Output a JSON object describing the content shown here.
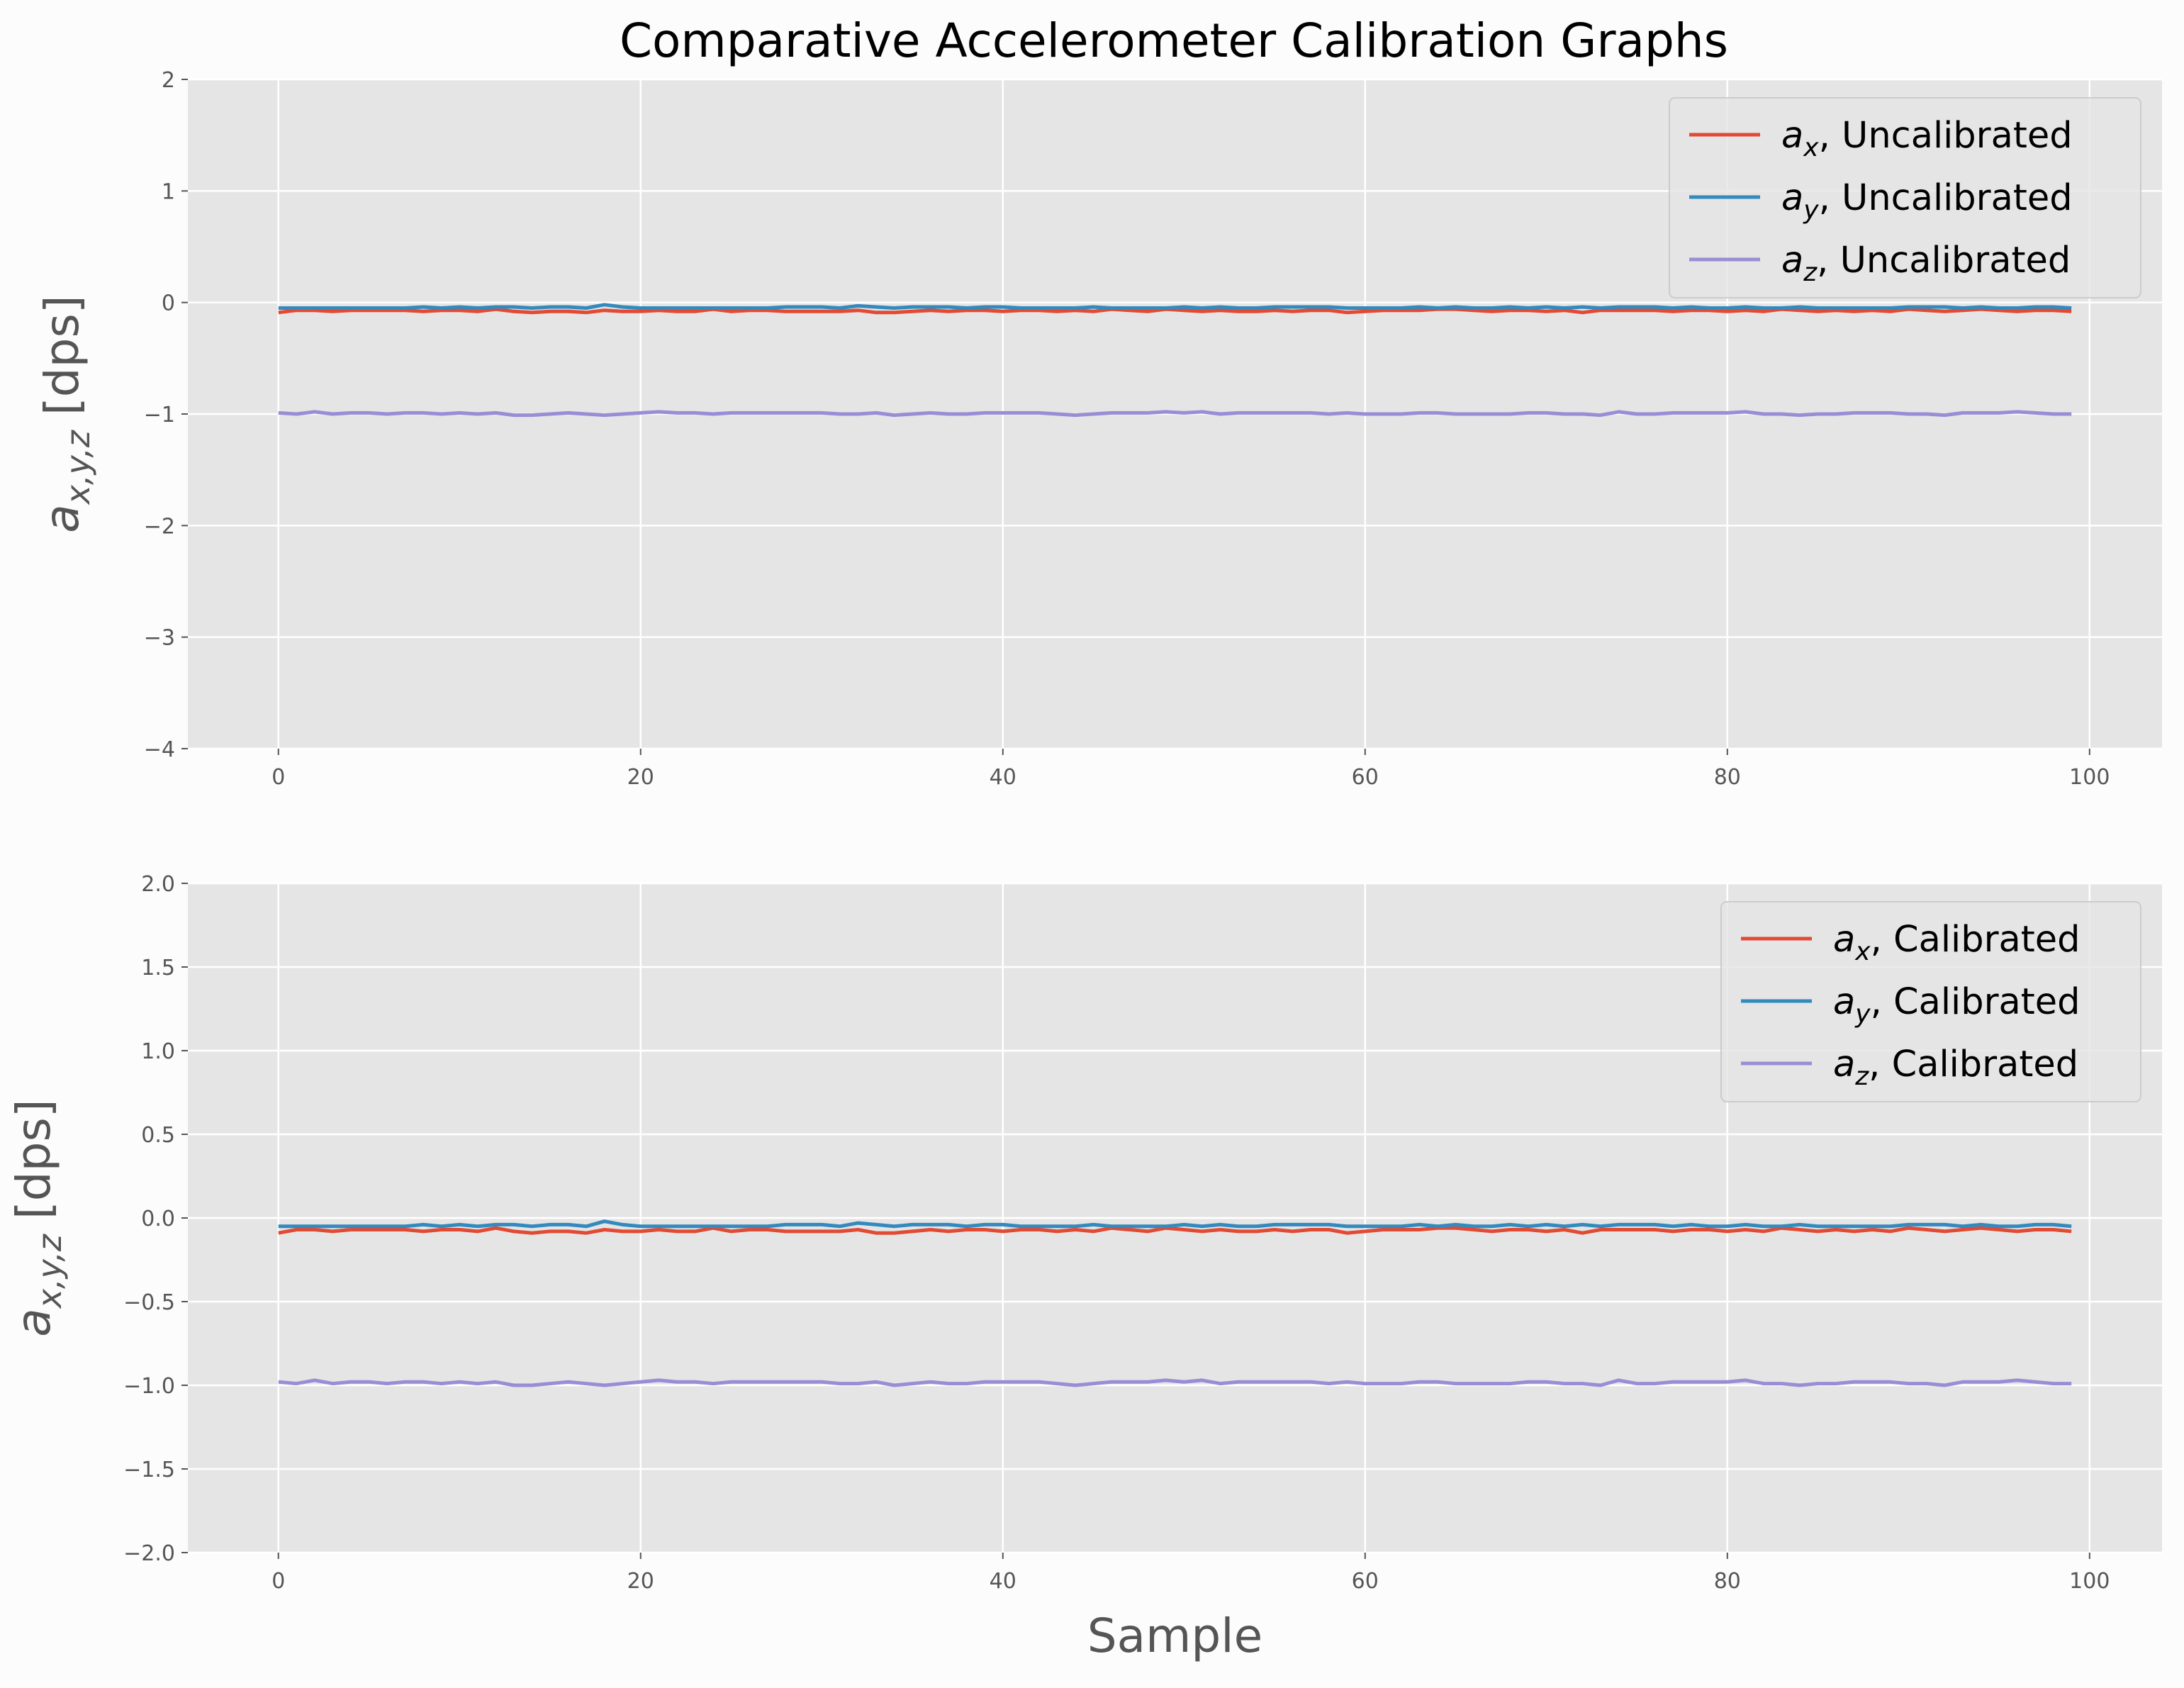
{
  "title": "Comparative Accelerometer Calibration Graphs",
  "colors": {
    "figure_bg": "#fcfcfc",
    "axes_bg": "#e5e5e5",
    "grid": "#ffffff",
    "tick_text": "#555555",
    "ax": "#E24A33",
    "ay": "#348ABD",
    "az": "#988ED5"
  },
  "chart_data": [
    {
      "type": "line",
      "ylabel": "a_{x,y,z} [dps]",
      "xlabel": "",
      "xlim": [
        -5,
        104
      ],
      "ylim": [
        -4,
        2
      ],
      "xticks": [
        0,
        20,
        40,
        60,
        80,
        100
      ],
      "yticks": [
        -4,
        -3,
        -2,
        -1,
        0,
        1,
        2
      ],
      "ytick_labels": [
        "−4",
        "−3",
        "−2",
        "−1",
        "0",
        "1",
        "2"
      ],
      "grid": true,
      "legend_position": "top-right",
      "series": [
        {
          "name": "a_x, Uncalibrated",
          "legend_sub": "x",
          "legend_rest": ", Uncalibrated",
          "color": "#E24A33",
          "x_start": 0,
          "x_step": 1,
          "values": [
            -0.09,
            -0.07,
            -0.07,
            -0.08,
            -0.07,
            -0.07,
            -0.07,
            -0.07,
            -0.08,
            -0.07,
            -0.07,
            -0.08,
            -0.06,
            -0.08,
            -0.09,
            -0.08,
            -0.08,
            -0.09,
            -0.07,
            -0.08,
            -0.08,
            -0.07,
            -0.08,
            -0.08,
            -0.06,
            -0.08,
            -0.07,
            -0.07,
            -0.08,
            -0.08,
            -0.08,
            -0.08,
            -0.07,
            -0.09,
            -0.09,
            -0.08,
            -0.07,
            -0.08,
            -0.07,
            -0.07,
            -0.08,
            -0.07,
            -0.07,
            -0.08,
            -0.07,
            -0.08,
            -0.06,
            -0.07,
            -0.08,
            -0.06,
            -0.07,
            -0.08,
            -0.07,
            -0.08,
            -0.08,
            -0.07,
            -0.08,
            -0.07,
            -0.07,
            -0.09,
            -0.08,
            -0.07,
            -0.07,
            -0.07,
            -0.06,
            -0.06,
            -0.07,
            -0.08,
            -0.07,
            -0.07,
            -0.08,
            -0.07,
            -0.09,
            -0.07,
            -0.07,
            -0.07,
            -0.07,
            -0.08,
            -0.07,
            -0.07,
            -0.08,
            -0.07,
            -0.08,
            -0.06,
            -0.07,
            -0.08,
            -0.07,
            -0.08,
            -0.07,
            -0.08,
            -0.06,
            -0.07,
            -0.08,
            -0.07,
            -0.06,
            -0.07,
            -0.08,
            -0.07,
            -0.07,
            -0.08
          ]
        },
        {
          "name": "a_y, Uncalibrated",
          "legend_sub": "y",
          "legend_rest": ", Uncalibrated",
          "color": "#348ABD",
          "x_start": 0,
          "x_step": 1,
          "values": [
            -0.05,
            -0.05,
            -0.05,
            -0.05,
            -0.05,
            -0.05,
            -0.05,
            -0.05,
            -0.04,
            -0.05,
            -0.04,
            -0.05,
            -0.04,
            -0.04,
            -0.05,
            -0.04,
            -0.04,
            -0.05,
            -0.02,
            -0.04,
            -0.05,
            -0.05,
            -0.05,
            -0.05,
            -0.05,
            -0.05,
            -0.05,
            -0.05,
            -0.04,
            -0.04,
            -0.04,
            -0.05,
            -0.03,
            -0.04,
            -0.05,
            -0.04,
            -0.04,
            -0.04,
            -0.05,
            -0.04,
            -0.04,
            -0.05,
            -0.05,
            -0.05,
            -0.05,
            -0.04,
            -0.05,
            -0.05,
            -0.05,
            -0.05,
            -0.04,
            -0.05,
            -0.04,
            -0.05,
            -0.05,
            -0.04,
            -0.04,
            -0.04,
            -0.04,
            -0.05,
            -0.05,
            -0.05,
            -0.05,
            -0.04,
            -0.05,
            -0.04,
            -0.05,
            -0.05,
            -0.04,
            -0.05,
            -0.04,
            -0.05,
            -0.04,
            -0.05,
            -0.04,
            -0.04,
            -0.04,
            -0.05,
            -0.04,
            -0.05,
            -0.05,
            -0.04,
            -0.05,
            -0.05,
            -0.04,
            -0.05,
            -0.05,
            -0.05,
            -0.05,
            -0.05,
            -0.04,
            -0.04,
            -0.04,
            -0.05,
            -0.04,
            -0.05,
            -0.05,
            -0.04,
            -0.04,
            -0.05
          ]
        },
        {
          "name": "a_z, Uncalibrated",
          "legend_sub": "z",
          "legend_rest": ", Uncalibrated",
          "color": "#988ED5",
          "x_start": 0,
          "x_step": 1,
          "values": [
            -0.99,
            -1.0,
            -0.98,
            -1.0,
            -0.99,
            -0.99,
            -1.0,
            -0.99,
            -0.99,
            -1.0,
            -0.99,
            -1.0,
            -0.99,
            -1.01,
            -1.01,
            -1.0,
            -0.99,
            -1.0,
            -1.01,
            -1.0,
            -0.99,
            -0.98,
            -0.99,
            -0.99,
            -1.0,
            -0.99,
            -0.99,
            -0.99,
            -0.99,
            -0.99,
            -0.99,
            -1.0,
            -1.0,
            -0.99,
            -1.01,
            -1.0,
            -0.99,
            -1.0,
            -1.0,
            -0.99,
            -0.99,
            -0.99,
            -0.99,
            -1.0,
            -1.01,
            -1.0,
            -0.99,
            -0.99,
            -0.99,
            -0.98,
            -0.99,
            -0.98,
            -1.0,
            -0.99,
            -0.99,
            -0.99,
            -0.99,
            -0.99,
            -1.0,
            -0.99,
            -1.0,
            -1.0,
            -1.0,
            -0.99,
            -0.99,
            -1.0,
            -1.0,
            -1.0,
            -1.0,
            -0.99,
            -0.99,
            -1.0,
            -1.0,
            -1.01,
            -0.98,
            -1.0,
            -1.0,
            -0.99,
            -0.99,
            -0.99,
            -0.99,
            -0.98,
            -1.0,
            -1.0,
            -1.01,
            -1.0,
            -1.0,
            -0.99,
            -0.99,
            -0.99,
            -1.0,
            -1.0,
            -1.01,
            -0.99,
            -0.99,
            -0.99,
            -0.98,
            -0.99,
            -1.0,
            -1.0
          ]
        }
      ]
    },
    {
      "type": "line",
      "ylabel": "a_{x,y,z} [dps]",
      "xlabel": "Sample",
      "xlim": [
        -5,
        104
      ],
      "ylim": [
        -2,
        2
      ],
      "xticks": [
        0,
        20,
        40,
        60,
        80,
        100
      ],
      "yticks": [
        -2,
        -1.5,
        -1,
        -0.5,
        0,
        0.5,
        1,
        1.5,
        2
      ],
      "ytick_labels": [
        "−2.0",
        "−1.5",
        "−1.0",
        "−0.5",
        "0.0",
        "0.5",
        "1.0",
        "1.5",
        "2.0"
      ],
      "grid": true,
      "legend_position": "top-right",
      "series": [
        {
          "name": "a_x, Calibrated",
          "legend_sub": "x",
          "legend_rest": ", Calibrated",
          "color": "#E24A33",
          "x_start": 0,
          "x_step": 1,
          "values": [
            -0.09,
            -0.07,
            -0.07,
            -0.08,
            -0.07,
            -0.07,
            -0.07,
            -0.07,
            -0.08,
            -0.07,
            -0.07,
            -0.08,
            -0.06,
            -0.08,
            -0.09,
            -0.08,
            -0.08,
            -0.09,
            -0.07,
            -0.08,
            -0.08,
            -0.07,
            -0.08,
            -0.08,
            -0.06,
            -0.08,
            -0.07,
            -0.07,
            -0.08,
            -0.08,
            -0.08,
            -0.08,
            -0.07,
            -0.09,
            -0.09,
            -0.08,
            -0.07,
            -0.08,
            -0.07,
            -0.07,
            -0.08,
            -0.07,
            -0.07,
            -0.08,
            -0.07,
            -0.08,
            -0.06,
            -0.07,
            -0.08,
            -0.06,
            -0.07,
            -0.08,
            -0.07,
            -0.08,
            -0.08,
            -0.07,
            -0.08,
            -0.07,
            -0.07,
            -0.09,
            -0.08,
            -0.07,
            -0.07,
            -0.07,
            -0.06,
            -0.06,
            -0.07,
            -0.08,
            -0.07,
            -0.07,
            -0.08,
            -0.07,
            -0.09,
            -0.07,
            -0.07,
            -0.07,
            -0.07,
            -0.08,
            -0.07,
            -0.07,
            -0.08,
            -0.07,
            -0.08,
            -0.06,
            -0.07,
            -0.08,
            -0.07,
            -0.08,
            -0.07,
            -0.08,
            -0.06,
            -0.07,
            -0.08,
            -0.07,
            -0.06,
            -0.07,
            -0.08,
            -0.07,
            -0.07,
            -0.08
          ]
        },
        {
          "name": "a_y, Calibrated",
          "legend_sub": "y",
          "legend_rest": ", Calibrated",
          "color": "#348ABD",
          "x_start": 0,
          "x_step": 1,
          "values": [
            -0.05,
            -0.05,
            -0.05,
            -0.05,
            -0.05,
            -0.05,
            -0.05,
            -0.05,
            -0.04,
            -0.05,
            -0.04,
            -0.05,
            -0.04,
            -0.04,
            -0.05,
            -0.04,
            -0.04,
            -0.05,
            -0.02,
            -0.04,
            -0.05,
            -0.05,
            -0.05,
            -0.05,
            -0.05,
            -0.05,
            -0.05,
            -0.05,
            -0.04,
            -0.04,
            -0.04,
            -0.05,
            -0.03,
            -0.04,
            -0.05,
            -0.04,
            -0.04,
            -0.04,
            -0.05,
            -0.04,
            -0.04,
            -0.05,
            -0.05,
            -0.05,
            -0.05,
            -0.04,
            -0.05,
            -0.05,
            -0.05,
            -0.05,
            -0.04,
            -0.05,
            -0.04,
            -0.05,
            -0.05,
            -0.04,
            -0.04,
            -0.04,
            -0.04,
            -0.05,
            -0.05,
            -0.05,
            -0.05,
            -0.04,
            -0.05,
            -0.04,
            -0.05,
            -0.05,
            -0.04,
            -0.05,
            -0.04,
            -0.05,
            -0.04,
            -0.05,
            -0.04,
            -0.04,
            -0.04,
            -0.05,
            -0.04,
            -0.05,
            -0.05,
            -0.04,
            -0.05,
            -0.05,
            -0.04,
            -0.05,
            -0.05,
            -0.05,
            -0.05,
            -0.05,
            -0.04,
            -0.04,
            -0.04,
            -0.05,
            -0.04,
            -0.05,
            -0.05,
            -0.04,
            -0.04,
            -0.05
          ]
        },
        {
          "name": "a_z, Calibrated",
          "legend_sub": "z",
          "legend_rest": ", Calibrated",
          "color": "#988ED5",
          "x_start": 0,
          "x_step": 1,
          "values": [
            -0.98,
            -0.99,
            -0.97,
            -0.99,
            -0.98,
            -0.98,
            -0.99,
            -0.98,
            -0.98,
            -0.99,
            -0.98,
            -0.99,
            -0.98,
            -1.0,
            -1.0,
            -0.99,
            -0.98,
            -0.99,
            -1.0,
            -0.99,
            -0.98,
            -0.97,
            -0.98,
            -0.98,
            -0.99,
            -0.98,
            -0.98,
            -0.98,
            -0.98,
            -0.98,
            -0.98,
            -0.99,
            -0.99,
            -0.98,
            -1.0,
            -0.99,
            -0.98,
            -0.99,
            -0.99,
            -0.98,
            -0.98,
            -0.98,
            -0.98,
            -0.99,
            -1.0,
            -0.99,
            -0.98,
            -0.98,
            -0.98,
            -0.97,
            -0.98,
            -0.97,
            -0.99,
            -0.98,
            -0.98,
            -0.98,
            -0.98,
            -0.98,
            -0.99,
            -0.98,
            -0.99,
            -0.99,
            -0.99,
            -0.98,
            -0.98,
            -0.99,
            -0.99,
            -0.99,
            -0.99,
            -0.98,
            -0.98,
            -0.99,
            -0.99,
            -1.0,
            -0.97,
            -0.99,
            -0.99,
            -0.98,
            -0.98,
            -0.98,
            -0.98,
            -0.97,
            -0.99,
            -0.99,
            -1.0,
            -0.99,
            -0.99,
            -0.98,
            -0.98,
            -0.98,
            -0.99,
            -0.99,
            -1.0,
            -0.98,
            -0.98,
            -0.98,
            -0.97,
            -0.98,
            -0.99,
            -0.99
          ]
        }
      ]
    }
  ]
}
